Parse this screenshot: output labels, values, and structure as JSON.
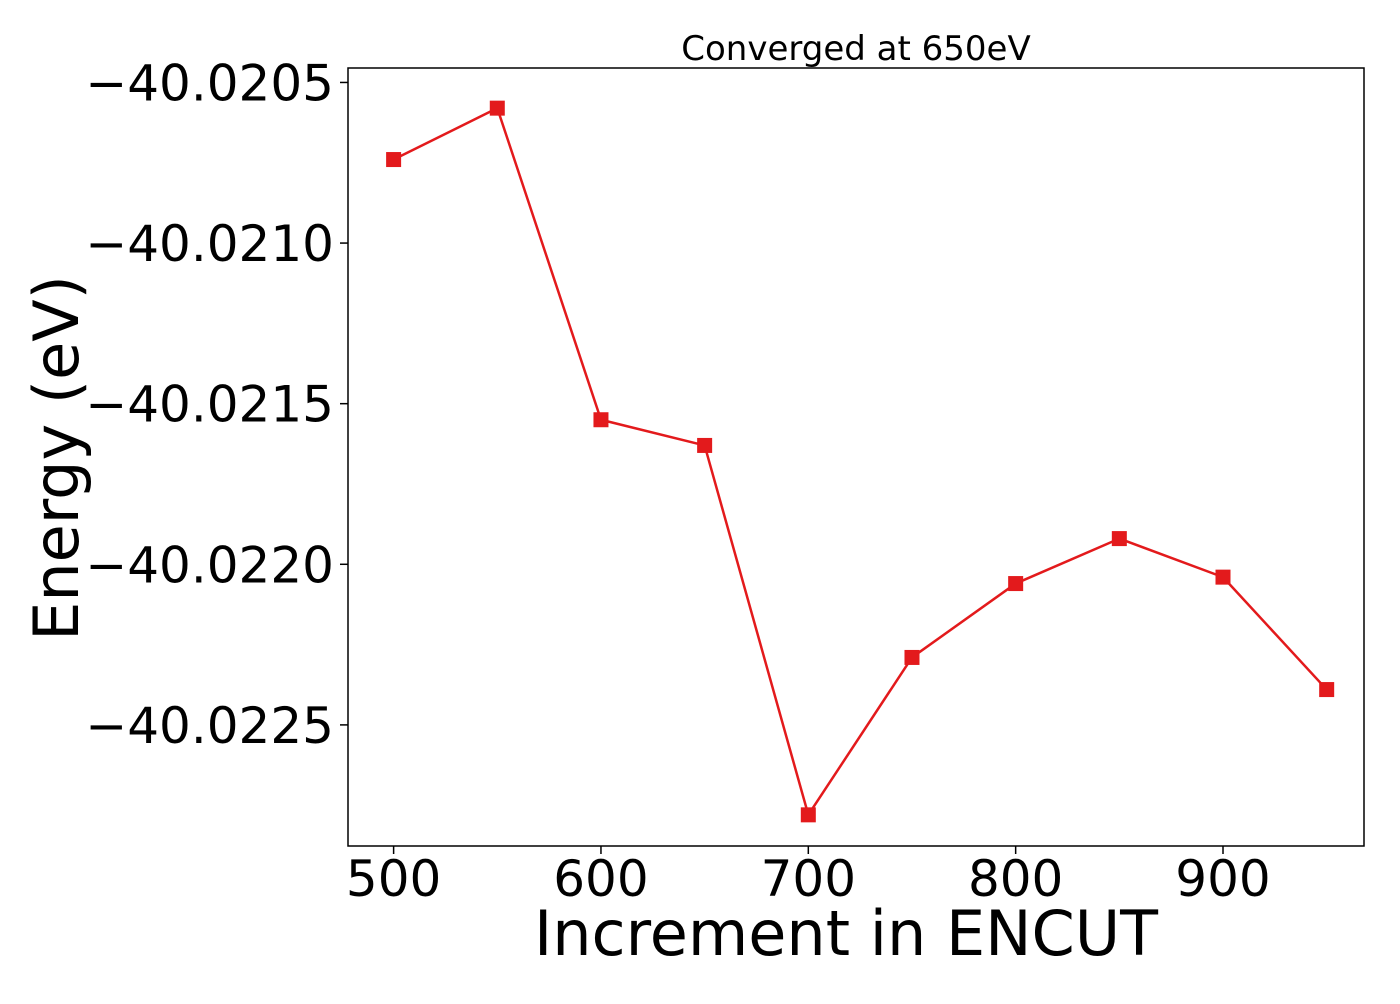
{
  "chart_data": {
    "type": "line",
    "title": "Converged at 650eV",
    "xlabel": "Increment in ENCUT",
    "ylabel": "Energy (eV)",
    "x": [
      500,
      550,
      600,
      650,
      700,
      750,
      800,
      850,
      900,
      950
    ],
    "series": [
      {
        "values": [
          -40.02074,
          -40.02058,
          -40.02155,
          -40.02163,
          -40.02278,
          -40.02229,
          -40.02206,
          -40.02192,
          -40.02204,
          -40.02239
        ],
        "color": "#e31a1c",
        "marker": "square"
      }
    ],
    "xlim": [
      478,
      968
    ],
    "ylim": [
      -40.022877,
      -40.020455
    ],
    "xticks": [
      500,
      600,
      700,
      800,
      900
    ],
    "xtick_labels": [
      "500",
      "600",
      "700",
      "800",
      "900"
    ],
    "yticks": [
      -40.0205,
      -40.021,
      -40.0215,
      -40.022,
      -40.0225
    ],
    "ytick_labels": [
      "−40.0205",
      "−40.0210",
      "−40.0215",
      "−40.0220",
      "−40.0225"
    ],
    "grid": false,
    "legend": "none"
  }
}
